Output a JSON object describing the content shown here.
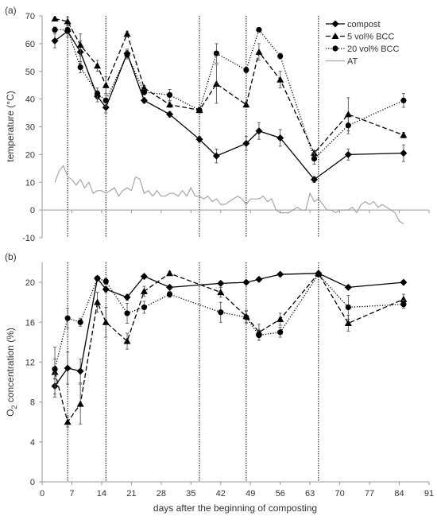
{
  "figure": {
    "xlabel": "days after the beginning of composting",
    "xticks": [
      0,
      7,
      14,
      21,
      28,
      35,
      42,
      49,
      56,
      63,
      70,
      77,
      84,
      91
    ],
    "xlim": [
      0,
      91
    ],
    "vlines": [
      6,
      15,
      37,
      48,
      65
    ]
  },
  "chart_data": [
    {
      "type": "line",
      "panel_label": "(a)",
      "ylabel": "temperature (°C)",
      "ylim": [
        -10,
        70
      ],
      "yticks": [
        -10,
        0,
        10,
        20,
        30,
        40,
        50,
        60,
        70
      ],
      "legend_position": "top-right",
      "series": [
        {
          "name": "compost",
          "marker": "diamond",
          "dash": "solid",
          "color": "#000000",
          "x": [
            3,
            6,
            9,
            13,
            15,
            20,
            24,
            30,
            37,
            41,
            48,
            51,
            56,
            64,
            72,
            85
          ],
          "y": [
            61,
            64.5,
            57,
            41,
            37,
            56.5,
            39.5,
            34.5,
            25.5,
            19.5,
            24,
            28.5,
            26,
            11,
            20,
            20.5
          ],
          "err": [
            2.5,
            2,
            4,
            2,
            2,
            1.5,
            1,
            1,
            1,
            2.5,
            2.5,
            3,
            3,
            1,
            2,
            3
          ]
        },
        {
          "name": "5 vol% BCC",
          "marker": "triangle",
          "dash": "dashed",
          "color": "#000000",
          "x": [
            3,
            6,
            9,
            13,
            15,
            20,
            24,
            30,
            37,
            41,
            48,
            51,
            56,
            64,
            72,
            85
          ],
          "y": [
            69,
            68,
            59.5,
            52,
            45,
            63.5,
            44,
            38,
            36,
            45.5,
            38,
            57,
            47,
            20.5,
            34.5,
            27
          ],
          "err": [
            0.5,
            1.5,
            4,
            2,
            3,
            1,
            1,
            1,
            1,
            7,
            1,
            3,
            3,
            1,
            6,
            1
          ]
        },
        {
          "name": "20 vol% BCC",
          "marker": "circle",
          "dash": "dotted",
          "color": "#000000",
          "x": [
            3,
            6,
            9,
            13,
            15,
            20,
            24,
            30,
            37,
            41,
            48,
            51,
            56,
            64,
            72,
            85
          ],
          "y": [
            65,
            65,
            51.5,
            42,
            39.5,
            56,
            42.5,
            41.5,
            36,
            56.5,
            50.5,
            65,
            55.5,
            18.5,
            30.5,
            39.5
          ],
          "err": [
            1,
            1.5,
            2,
            2,
            2,
            1.5,
            1,
            2,
            1,
            3.5,
            1,
            0.5,
            1,
            2,
            3,
            2.5
          ]
        },
        {
          "name": "AT",
          "marker": "none",
          "dash": "solid",
          "color": "#a6a6a6",
          "x": [
            3,
            4,
            5,
            6,
            7,
            8,
            9,
            10,
            11,
            12,
            13,
            14,
            15,
            16,
            17,
            18,
            19,
            20,
            21,
            22,
            23,
            24,
            25,
            26,
            27,
            28,
            29,
            30,
            31,
            32,
            33,
            34,
            35,
            36,
            37,
            38,
            39,
            40,
            41,
            42,
            43,
            44,
            45,
            46,
            47,
            48,
            49,
            50,
            51,
            52,
            53,
            54,
            55,
            56,
            57,
            58,
            59,
            60,
            61,
            62,
            63,
            64,
            65,
            66,
            67,
            68,
            69,
            70,
            71,
            72,
            73,
            74,
            75,
            76,
            77,
            78,
            79,
            80,
            81,
            82,
            83,
            84,
            85
          ],
          "y": [
            10,
            14,
            16,
            12,
            11,
            9,
            11,
            8,
            10,
            6,
            7,
            7,
            6,
            7,
            8,
            5,
            7,
            8,
            7,
            12,
            11,
            6,
            7,
            5,
            7,
            5,
            5,
            6,
            6,
            5,
            7,
            5,
            8,
            5,
            5,
            4,
            5,
            3,
            4,
            2,
            2,
            3,
            4,
            5,
            4,
            2,
            4,
            4,
            4,
            5,
            3,
            4,
            0,
            -1,
            -1,
            -1,
            0,
            1,
            0,
            0,
            6,
            3,
            4,
            2,
            0,
            0,
            -1,
            0,
            0,
            0,
            1,
            -1,
            2,
            3,
            2,
            3,
            1,
            2,
            1,
            0,
            -1,
            -4,
            -5
          ]
        }
      ]
    },
    {
      "type": "line",
      "panel_label": "(b)",
      "ylabel_prefix": "O",
      "ylabel_sub": "2",
      "ylabel_suffix": " concentration (%)",
      "ylim": [
        0,
        22
      ],
      "yticks": [
        0,
        4,
        8,
        12,
        16,
        20
      ],
      "series": [
        {
          "name": "compost",
          "marker": "diamond",
          "dash": "solid",
          "color": "#000000",
          "x": [
            3,
            6,
            9,
            13,
            15,
            20,
            24,
            30,
            42,
            48,
            51,
            56,
            65,
            72,
            85
          ],
          "y": [
            9.6,
            11.4,
            11.1,
            20.4,
            19.3,
            18.5,
            20.6,
            19.5,
            19.9,
            20,
            20.3,
            20.8,
            20.9,
            19.5,
            20
          ],
          "err": [
            0.8,
            1.6,
            1.2,
            0.2,
            0.3,
            0.3,
            0.2,
            0.2,
            0.2,
            0.2,
            0.2,
            0.1,
            0.1,
            0.2,
            0.2
          ]
        },
        {
          "name": "5 vol% BCC",
          "marker": "triangle",
          "dash": "dashed",
          "color": "#000000",
          "x": [
            3,
            6,
            9,
            13,
            15,
            20,
            24,
            30,
            42,
            48,
            51,
            56,
            65,
            72,
            85
          ],
          "y": [
            11,
            6,
            7.8,
            18,
            16,
            14.1,
            19.1,
            20.9,
            19,
            16.6,
            15,
            16.3,
            20.9,
            15.9,
            18.3
          ],
          "err": [
            2.5,
            0.5,
            2,
            1,
            1.5,
            0.8,
            0.5,
            0.2,
            0.5,
            0.6,
            0.8,
            0.6,
            0.1,
            0.8,
            0.5
          ]
        },
        {
          "name": "20 vol% BCC",
          "marker": "circle",
          "dash": "dotted",
          "color": "#000000",
          "x": [
            3,
            6,
            9,
            13,
            15,
            20,
            24,
            30,
            42,
            48,
            51,
            56,
            65,
            72,
            85
          ],
          "y": [
            11.3,
            16.4,
            16,
            20.4,
            20.1,
            16.9,
            17.5,
            18.8,
            17,
            16.5,
            14.7,
            15,
            20.8,
            17.5,
            17.8
          ],
          "err": [
            1,
            1,
            0.4,
            0.2,
            0.3,
            1,
            0.6,
            0.3,
            1,
            0.6,
            0.5,
            0.5,
            0.1,
            1.2,
            0.4
          ]
        }
      ]
    }
  ]
}
